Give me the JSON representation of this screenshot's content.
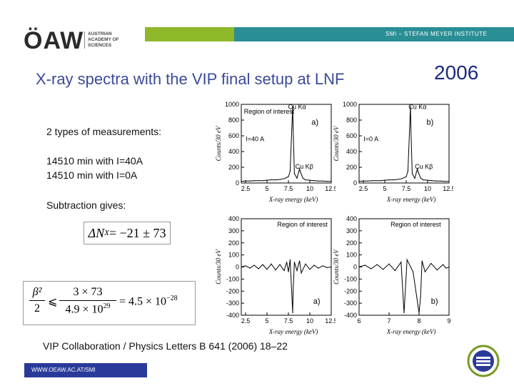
{
  "header": {
    "logo_text": "ÖAW",
    "logo_sub": "AUSTRIAN\nACADEMY OF\nSCIENCES",
    "institute": "SMI – STEFAN MEYER INSTITUTE",
    "colors": {
      "green": "#8fb82a",
      "teal": "#2a8e95",
      "title_blue": "#3b4a9a",
      "footer_blue": "#2a3a9a"
    }
  },
  "title": "X-ray spectra with the VIP final setup at LNF",
  "year": "2006",
  "body": {
    "measurements": "2 types of measurements:",
    "m1": "14510 min with I=40A",
    "m2": "14510 min with I=0A",
    "subtraction": "Subtraction gives:",
    "eq1_lhs": "ΔN",
    "eq1_sub": "X",
    "eq1_rhs": " = −21 ± 73",
    "formula": {
      "lhs_num": "β²",
      "lhs_den": "2",
      "leq": "⩽",
      "frac_num": "3 × 73",
      "frac_den": "4.9 × 10",
      "frac_den_exp": "29",
      "rhs": "= 4.5 × 10",
      "rhs_exp": "−28"
    }
  },
  "citation": "VIP Collaboration / Physics Letters B 641 (2006) 18–22",
  "footer": "WWW.OEAW.AC.AT/SMI",
  "chart_data": [
    {
      "type": "line",
      "panel": "a) top",
      "xlabel": "X-ray energy (keV)",
      "ylabel": "Counts/30 eV",
      "xticks": [
        "2.5",
        "5",
        "7.5",
        "10",
        "12.5"
      ],
      "yticks": [
        "0",
        "200",
        "400",
        "600",
        "800",
        "1000"
      ],
      "xlim": [
        2,
        12.5
      ],
      "ylim": [
        0,
        1000
      ],
      "annotations": [
        "Region of interest",
        "Cu Kα",
        "Cu Kβ",
        "I=40 A",
        "a)"
      ],
      "x": [
        2,
        2.5,
        3,
        3.5,
        4,
        4.5,
        5,
        5.5,
        6,
        6.5,
        7,
        7.3,
        7.5,
        7.7,
        8,
        8.05,
        8.2,
        8.5,
        8.8,
        8.9,
        9.2,
        9.5,
        10,
        10.5,
        11,
        11.5,
        12,
        12.5
      ],
      "y": [
        20,
        25,
        25,
        30,
        30,
        30,
        35,
        40,
        40,
        45,
        55,
        70,
        80,
        150,
        980,
        700,
        120,
        60,
        180,
        140,
        60,
        40,
        35,
        30,
        25,
        25,
        20,
        20
      ]
    },
    {
      "type": "line",
      "panel": "b) top",
      "xlabel": "X-ray energy (keV)",
      "ylabel": "Counts/30 eV",
      "xticks": [
        "2.5",
        "5",
        "7.5",
        "10",
        "12.5"
      ],
      "yticks": [
        "0",
        "200",
        "400",
        "600",
        "800",
        "1000"
      ],
      "xlim": [
        2,
        12.5
      ],
      "ylim": [
        0,
        1000
      ],
      "annotations": [
        "Cu Kα",
        "Cu Kβ",
        "I=0 A",
        "b)"
      ],
      "x": [
        2,
        2.5,
        3,
        3.5,
        4,
        4.5,
        5,
        5.5,
        6,
        6.5,
        7,
        7.3,
        7.5,
        7.7,
        8,
        8.05,
        8.2,
        8.5,
        8.8,
        8.9,
        9.2,
        9.5,
        10,
        10.5,
        11,
        11.5,
        12,
        12.5
      ],
      "y": [
        20,
        25,
        25,
        30,
        30,
        30,
        35,
        40,
        40,
        45,
        55,
        70,
        80,
        150,
        980,
        700,
        120,
        60,
        180,
        140,
        60,
        40,
        35,
        30,
        25,
        25,
        20,
        20
      ]
    },
    {
      "type": "line",
      "panel": "a) bottom",
      "xlabel": "X-ray energy (keV)",
      "ylabel": "Counts/30 eV",
      "xticks": [
        "2.5",
        "5",
        "7.5",
        "10",
        "12.5"
      ],
      "yticks": [
        "-400",
        "-300",
        "-200",
        "-100",
        "0",
        "100",
        "200",
        "300",
        "400"
      ],
      "xlim": [
        2,
        12.5
      ],
      "ylim": [
        -400,
        400
      ],
      "annotations": [
        "Region of interest",
        "a)"
      ],
      "x": [
        2,
        2.5,
        3,
        3.5,
        4,
        4.5,
        5,
        5.5,
        6,
        6.5,
        7,
        7.3,
        7.5,
        7.7,
        8,
        8.05,
        8.2,
        8.5,
        8.8,
        9,
        9.5,
        10,
        10.5,
        11,
        11.5,
        12,
        12.5
      ],
      "y": [
        0,
        10,
        -10,
        15,
        -15,
        20,
        -20,
        25,
        -25,
        20,
        -30,
        40,
        -40,
        60,
        -380,
        -200,
        40,
        -30,
        50,
        -50,
        25,
        -20,
        15,
        -10,
        10,
        -5,
        0
      ]
    },
    {
      "type": "line",
      "panel": "b) bottom",
      "xlabel": "X-ray energy (keV)",
      "ylabel": "Counts/30 eV",
      "xticks": [
        "6",
        "7",
        "8",
        "9"
      ],
      "yticks": [
        "-400",
        "-300",
        "-200",
        "-100",
        "0",
        "100",
        "200",
        "300",
        "400"
      ],
      "xlim": [
        6,
        9
      ],
      "ylim": [
        -400,
        400
      ],
      "annotations": [
        "Region of interest",
        "b)"
      ],
      "x": [
        6,
        6.2,
        6.4,
        6.6,
        6.8,
        7,
        7.2,
        7.4,
        7.5,
        7.6,
        7.8,
        8,
        8.05,
        8.1,
        8.2,
        8.4,
        8.6,
        8.8,
        8.9,
        9
      ],
      "y": [
        0,
        15,
        -15,
        20,
        -20,
        25,
        -30,
        40,
        -380,
        60,
        -40,
        -380,
        -250,
        50,
        -40,
        30,
        -25,
        20,
        -10,
        0
      ]
    }
  ]
}
